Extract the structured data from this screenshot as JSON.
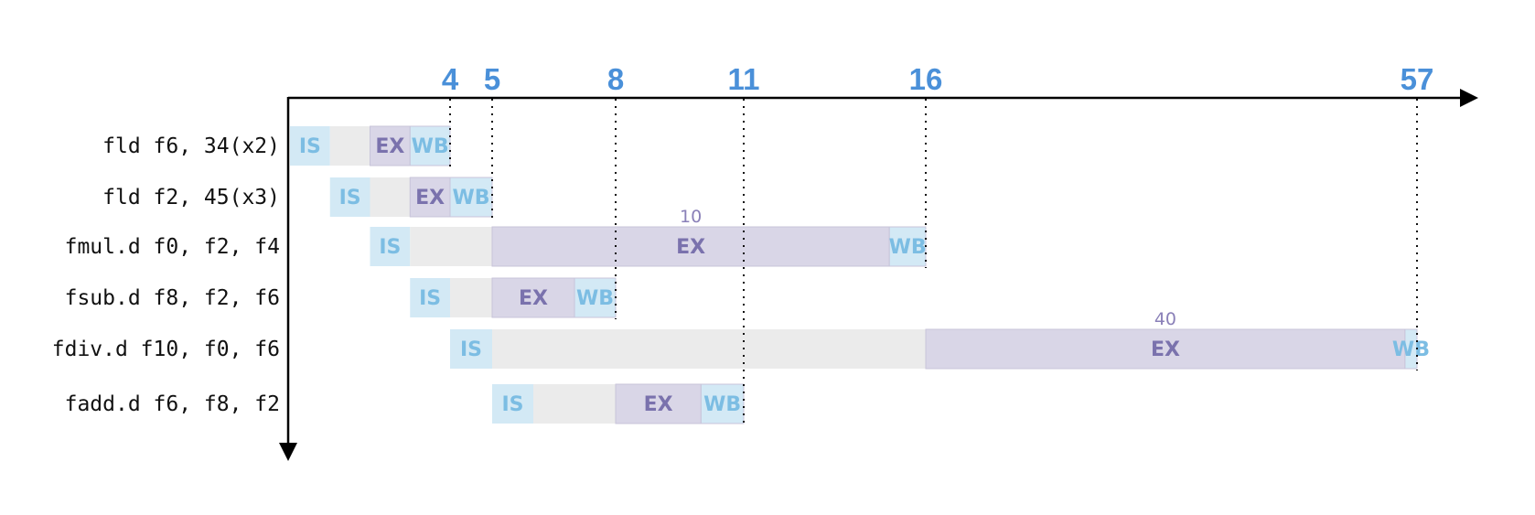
{
  "timeline": {
    "ticks": [
      {
        "cycle": 4,
        "label": "4"
      },
      {
        "cycle": 5,
        "label": "5"
      },
      {
        "cycle": 8,
        "label": "8"
      },
      {
        "cycle": 11,
        "label": "11"
      },
      {
        "cycle": 16,
        "label": "16"
      },
      {
        "cycle": 57,
        "label": "57"
      }
    ]
  },
  "stage_labels": {
    "IS": "IS",
    "EX": "EX",
    "WB": "WB"
  },
  "colors": {
    "IS": "#d3e9f5",
    "wait": "#ebebeb",
    "EX": "#d9d6e7",
    "WB": "#d3e9f5",
    "IS_text": "#7cbde3",
    "EX_text": "#7a72ad",
    "WB_text": "#7cbde3",
    "tick": "#4a90d9"
  },
  "instructions": [
    {
      "label": "fld f6, 34(x2)",
      "segments": [
        {
          "kind": "IS",
          "start": 0,
          "end": 1
        },
        {
          "kind": "wait",
          "start": 1,
          "end": 2
        },
        {
          "kind": "EX",
          "start": 2,
          "end": 3
        },
        {
          "kind": "WB",
          "start": 3,
          "end": 4
        }
      ],
      "tick_cycle": 4
    },
    {
      "label": "fld f2, 45(x3)",
      "segments": [
        {
          "kind": "IS",
          "start": 1,
          "end": 2
        },
        {
          "kind": "wait",
          "start": 2,
          "end": 3
        },
        {
          "kind": "EX",
          "start": 3,
          "end": 4
        },
        {
          "kind": "WB",
          "start": 4,
          "end": 5
        }
      ],
      "tick_cycle": 5
    },
    {
      "label": "fmul.d f0, f2, f4",
      "segments": [
        {
          "kind": "IS",
          "start": 2,
          "end": 3
        },
        {
          "kind": "wait",
          "start": 3,
          "end": 5
        },
        {
          "kind": "EX",
          "start": 5,
          "end": 15,
          "latency": "10"
        },
        {
          "kind": "WB",
          "start": 15,
          "end": 16
        }
      ],
      "tick_cycle": 16
    },
    {
      "label": "fsub.d f8, f2, f6",
      "segments": [
        {
          "kind": "IS",
          "start": 3,
          "end": 4
        },
        {
          "kind": "wait",
          "start": 4,
          "end": 5
        },
        {
          "kind": "EX",
          "start": 5,
          "end": 7
        },
        {
          "kind": "WB",
          "start": 7,
          "end": 8
        }
      ],
      "tick_cycle": 8
    },
    {
      "label": "fdiv.d f10, f0, f6",
      "segments": [
        {
          "kind": "IS",
          "start": 4,
          "end": 5
        },
        {
          "kind": "wait",
          "start": 5,
          "end": 16
        },
        {
          "kind": "EX",
          "start": 16,
          "end": 56,
          "latency": "40"
        },
        {
          "kind": "WB",
          "start": 56,
          "end": 57
        }
      ],
      "tick_cycle": 57
    },
    {
      "label": "fadd.d f6, f8, f2",
      "segments": [
        {
          "kind": "IS",
          "start": 5,
          "end": 6
        },
        {
          "kind": "wait",
          "start": 6,
          "end": 8
        },
        {
          "kind": "EX",
          "start": 8,
          "end": 10
        },
        {
          "kind": "WB",
          "start": 10,
          "end": 11
        }
      ],
      "tick_cycle": 11
    }
  ]
}
